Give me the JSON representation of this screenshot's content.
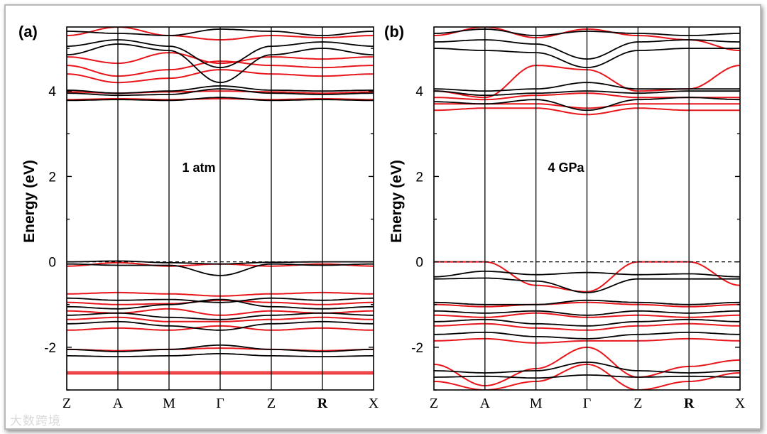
{
  "watermark": "大数跨境",
  "colors": {
    "black_bands": "#000000",
    "red_bands": "#e8161b",
    "axis": "#000000"
  },
  "chart_data": [
    {
      "type": "line",
      "panel": "(a)",
      "annotation": "1 atm",
      "ylabel": "Energy (eV)",
      "ylim": [
        -3.0,
        5.5
      ],
      "yticks": [
        -2,
        0,
        2,
        4
      ],
      "yticklabels": [
        "-2",
        "0",
        "2",
        "4"
      ],
      "kpoints": [
        "Z",
        "A",
        "M",
        "Γ",
        "Z",
        "R",
        "X"
      ],
      "fermi_level": 0,
      "legend": "none",
      "series": [
        {
          "name": "black-1",
          "color": "black",
          "values": [
            3.78,
            3.8,
            3.78,
            3.85,
            3.78,
            3.8,
            3.78
          ]
        },
        {
          "name": "black-2",
          "color": "black",
          "values": [
            3.95,
            3.9,
            3.92,
            4.05,
            3.95,
            3.92,
            3.95
          ]
        },
        {
          "name": "black-3",
          "color": "black",
          "values": [
            4.02,
            3.95,
            4.0,
            4.12,
            4.02,
            4.0,
            4.02
          ]
        },
        {
          "name": "black-4",
          "color": "black",
          "values": [
            4.85,
            5.1,
            4.95,
            4.2,
            4.85,
            5.0,
            4.85
          ]
        },
        {
          "name": "black-5",
          "color": "black",
          "values": [
            5.05,
            5.2,
            5.05,
            4.55,
            5.05,
            5.15,
            5.05
          ]
        },
        {
          "name": "black-6",
          "color": "black",
          "values": [
            5.4,
            5.35,
            5.3,
            5.45,
            5.4,
            5.3,
            5.4
          ]
        },
        {
          "name": "black-7",
          "color": "black",
          "values": [
            0.0,
            0.02,
            -0.02,
            -0.05,
            -0.01,
            0.0,
            0.0
          ]
        },
        {
          "name": "black-8",
          "color": "black",
          "values": [
            -0.05,
            -0.08,
            -0.08,
            -0.32,
            -0.05,
            -0.08,
            -0.05
          ]
        },
        {
          "name": "black-9",
          "color": "black",
          "values": [
            -0.85,
            -0.9,
            -0.88,
            -0.95,
            -0.85,
            -0.9,
            -0.85
          ]
        },
        {
          "name": "black-10",
          "color": "black",
          "values": [
            -1.05,
            -1.1,
            -1.0,
            -0.88,
            -1.05,
            -1.1,
            -1.05
          ]
        },
        {
          "name": "black-11",
          "color": "black",
          "values": [
            -1.25,
            -1.2,
            -1.3,
            -1.35,
            -1.25,
            -1.2,
            -1.25
          ]
        },
        {
          "name": "black-12",
          "color": "black",
          "values": [
            -1.45,
            -1.4,
            -1.5,
            -1.6,
            -1.45,
            -1.4,
            -1.45
          ]
        },
        {
          "name": "black-13",
          "color": "black",
          "values": [
            -2.05,
            -2.1,
            -2.05,
            -1.95,
            -2.05,
            -2.1,
            -2.05
          ]
        },
        {
          "name": "black-14",
          "color": "black",
          "values": [
            -2.2,
            -2.22,
            -2.2,
            -2.15,
            -2.2,
            -2.22,
            -2.2
          ]
        },
        {
          "name": "red-1",
          "color": "red",
          "values": [
            3.8,
            3.82,
            3.8,
            3.82,
            3.8,
            3.82,
            3.8
          ]
        },
        {
          "name": "red-2",
          "color": "red",
          "values": [
            3.98,
            3.95,
            3.98,
            4.0,
            3.98,
            3.95,
            3.98
          ]
        },
        {
          "name": "red-3",
          "color": "red",
          "values": [
            4.4,
            4.2,
            4.3,
            4.5,
            4.4,
            4.35,
            4.4
          ]
        },
        {
          "name": "red-4",
          "color": "red",
          "values": [
            4.6,
            4.35,
            4.5,
            4.7,
            4.6,
            4.55,
            4.6
          ]
        },
        {
          "name": "red-5",
          "color": "red",
          "values": [
            4.8,
            4.65,
            4.9,
            4.65,
            4.8,
            4.75,
            4.8
          ]
        },
        {
          "name": "red-6",
          "color": "red",
          "values": [
            5.3,
            5.5,
            5.3,
            5.2,
            5.3,
            5.25,
            5.3
          ]
        },
        {
          "name": "red-7",
          "color": "red",
          "values": [
            -0.1,
            -0.02,
            -0.1,
            -0.05,
            -0.1,
            -0.05,
            -0.1
          ]
        },
        {
          "name": "red-8",
          "color": "red",
          "values": [
            -0.75,
            -0.72,
            -0.75,
            -0.8,
            -0.75,
            -0.72,
            -0.75
          ]
        },
        {
          "name": "red-9",
          "color": "red",
          "values": [
            -0.95,
            -1.0,
            -0.98,
            -0.9,
            -0.95,
            -1.0,
            -0.95
          ]
        },
        {
          "name": "red-10",
          "color": "red",
          "values": [
            -1.15,
            -1.2,
            -1.1,
            -1.25,
            -1.15,
            -1.2,
            -1.15
          ]
        },
        {
          "name": "red-11",
          "color": "red",
          "values": [
            -1.35,
            -1.3,
            -1.4,
            -1.4,
            -1.35,
            -1.3,
            -1.35
          ]
        },
        {
          "name": "red-12",
          "color": "red",
          "values": [
            -1.6,
            -1.55,
            -1.6,
            -1.5,
            -1.6,
            -1.55,
            -1.6
          ]
        },
        {
          "name": "red-13",
          "color": "red",
          "values": [
            -2.05,
            -2.08,
            -2.05,
            -2.02,
            -2.05,
            -2.08,
            -2.05
          ]
        },
        {
          "name": "red-14",
          "color": "red",
          "values": [
            -2.58,
            -2.58,
            -2.58,
            -2.58,
            -2.58,
            -2.58,
            -2.58
          ]
        },
        {
          "name": "red-15",
          "color": "red",
          "values": [
            -2.62,
            -2.62,
            -2.62,
            -2.62,
            -2.62,
            -2.62,
            -2.62
          ]
        }
      ]
    },
    {
      "type": "line",
      "panel": "(b)",
      "annotation": "4 GPa",
      "ylabel": "Energy (eV)",
      "ylim": [
        -3.0,
        5.5
      ],
      "yticks": [
        -2,
        0,
        2,
        4
      ],
      "yticklabels": [
        "-2",
        "0",
        "2",
        "4"
      ],
      "kpoints": [
        "Z",
        "A",
        "M",
        "Γ",
        "Z",
        "R",
        "X"
      ],
      "fermi_level": 0,
      "legend": "none",
      "series": [
        {
          "name": "black-1",
          "color": "black",
          "values": [
            3.75,
            3.7,
            3.8,
            3.55,
            3.8,
            3.85,
            3.8
          ]
        },
        {
          "name": "black-2",
          "color": "black",
          "values": [
            4.0,
            3.9,
            3.95,
            4.0,
            3.95,
            4.0,
            4.0
          ]
        },
        {
          "name": "black-3",
          "color": "black",
          "values": [
            4.05,
            4.0,
            4.05,
            4.2,
            4.05,
            4.05,
            4.05
          ]
        },
        {
          "name": "black-4",
          "color": "black",
          "values": [
            5.0,
            4.95,
            4.9,
            4.55,
            4.95,
            5.0,
            5.0
          ]
        },
        {
          "name": "black-5",
          "color": "black",
          "values": [
            5.15,
            5.2,
            5.1,
            4.75,
            5.15,
            5.2,
            5.15
          ]
        },
        {
          "name": "black-6",
          "color": "black",
          "values": [
            5.35,
            5.45,
            5.3,
            5.4,
            5.35,
            5.3,
            5.35
          ]
        },
        {
          "name": "black-7",
          "color": "black",
          "values": [
            -0.35,
            -0.22,
            -0.3,
            -0.25,
            -0.3,
            -0.28,
            -0.35
          ]
        },
        {
          "name": "black-8",
          "color": "black",
          "values": [
            -0.4,
            -0.38,
            -0.45,
            -0.72,
            -0.4,
            -0.4,
            -0.4
          ]
        },
        {
          "name": "black-9",
          "color": "black",
          "values": [
            -0.95,
            -1.0,
            -1.0,
            -0.9,
            -0.95,
            -1.0,
            -0.95
          ]
        },
        {
          "name": "black-10",
          "color": "black",
          "values": [
            -1.15,
            -1.2,
            -1.15,
            -1.25,
            -1.15,
            -1.2,
            -1.15
          ]
        },
        {
          "name": "black-11",
          "color": "black",
          "values": [
            -1.4,
            -1.35,
            -1.45,
            -1.5,
            -1.4,
            -1.35,
            -1.4
          ]
        },
        {
          "name": "black-12",
          "color": "black",
          "values": [
            -1.7,
            -1.65,
            -1.75,
            -1.8,
            -1.7,
            -1.65,
            -1.7
          ]
        },
        {
          "name": "black-13",
          "color": "black",
          "values": [
            -2.55,
            -2.6,
            -2.55,
            -2.35,
            -2.55,
            -2.6,
            -2.55
          ]
        },
        {
          "name": "black-14",
          "color": "black",
          "values": [
            -2.7,
            -2.68,
            -2.72,
            -2.65,
            -2.7,
            -2.68,
            -2.7
          ]
        },
        {
          "name": "red-1",
          "color": "red",
          "values": [
            3.55,
            3.6,
            3.6,
            3.45,
            3.6,
            3.55,
            3.55
          ]
        },
        {
          "name": "red-2",
          "color": "red",
          "values": [
            3.7,
            3.7,
            3.7,
            3.6,
            3.7,
            3.7,
            3.7
          ]
        },
        {
          "name": "red-3",
          "color": "red",
          "values": [
            3.85,
            3.8,
            3.9,
            3.95,
            3.85,
            3.85,
            3.85
          ]
        },
        {
          "name": "red-4",
          "color": "red",
          "values": [
            4.0,
            3.85,
            4.6,
            4.5,
            4.0,
            4.05,
            4.6
          ]
        },
        {
          "name": "red-5",
          "color": "red",
          "values": [
            5.3,
            5.5,
            5.25,
            5.45,
            5.3,
            5.2,
            4.95
          ]
        },
        {
          "name": "red-6",
          "color": "red",
          "values": [
            0.0,
            0.0,
            -0.55,
            -0.7,
            0.0,
            0.0,
            -0.55
          ]
        },
        {
          "name": "red-7",
          "color": "red",
          "values": [
            -1.0,
            -1.05,
            -1.0,
            -0.95,
            -1.0,
            -1.05,
            -1.0
          ]
        },
        {
          "name": "red-8",
          "color": "red",
          "values": [
            -1.25,
            -1.3,
            -1.2,
            -1.3,
            -1.25,
            -1.3,
            -1.25
          ]
        },
        {
          "name": "red-9",
          "color": "red",
          "values": [
            -1.5,
            -1.45,
            -1.55,
            -1.6,
            -1.5,
            -1.45,
            -1.5
          ]
        },
        {
          "name": "red-10",
          "color": "red",
          "values": [
            -1.85,
            -1.8,
            -1.9,
            -1.85,
            -1.85,
            -1.8,
            -1.85
          ]
        },
        {
          "name": "red-11",
          "color": "red",
          "values": [
            -2.4,
            -2.9,
            -2.5,
            -2.0,
            -2.7,
            -2.45,
            -2.3
          ]
        },
        {
          "name": "red-12",
          "color": "red",
          "values": [
            -2.8,
            -3.0,
            -2.8,
            -2.4,
            -3.0,
            -2.8,
            -2.6
          ]
        }
      ]
    }
  ]
}
